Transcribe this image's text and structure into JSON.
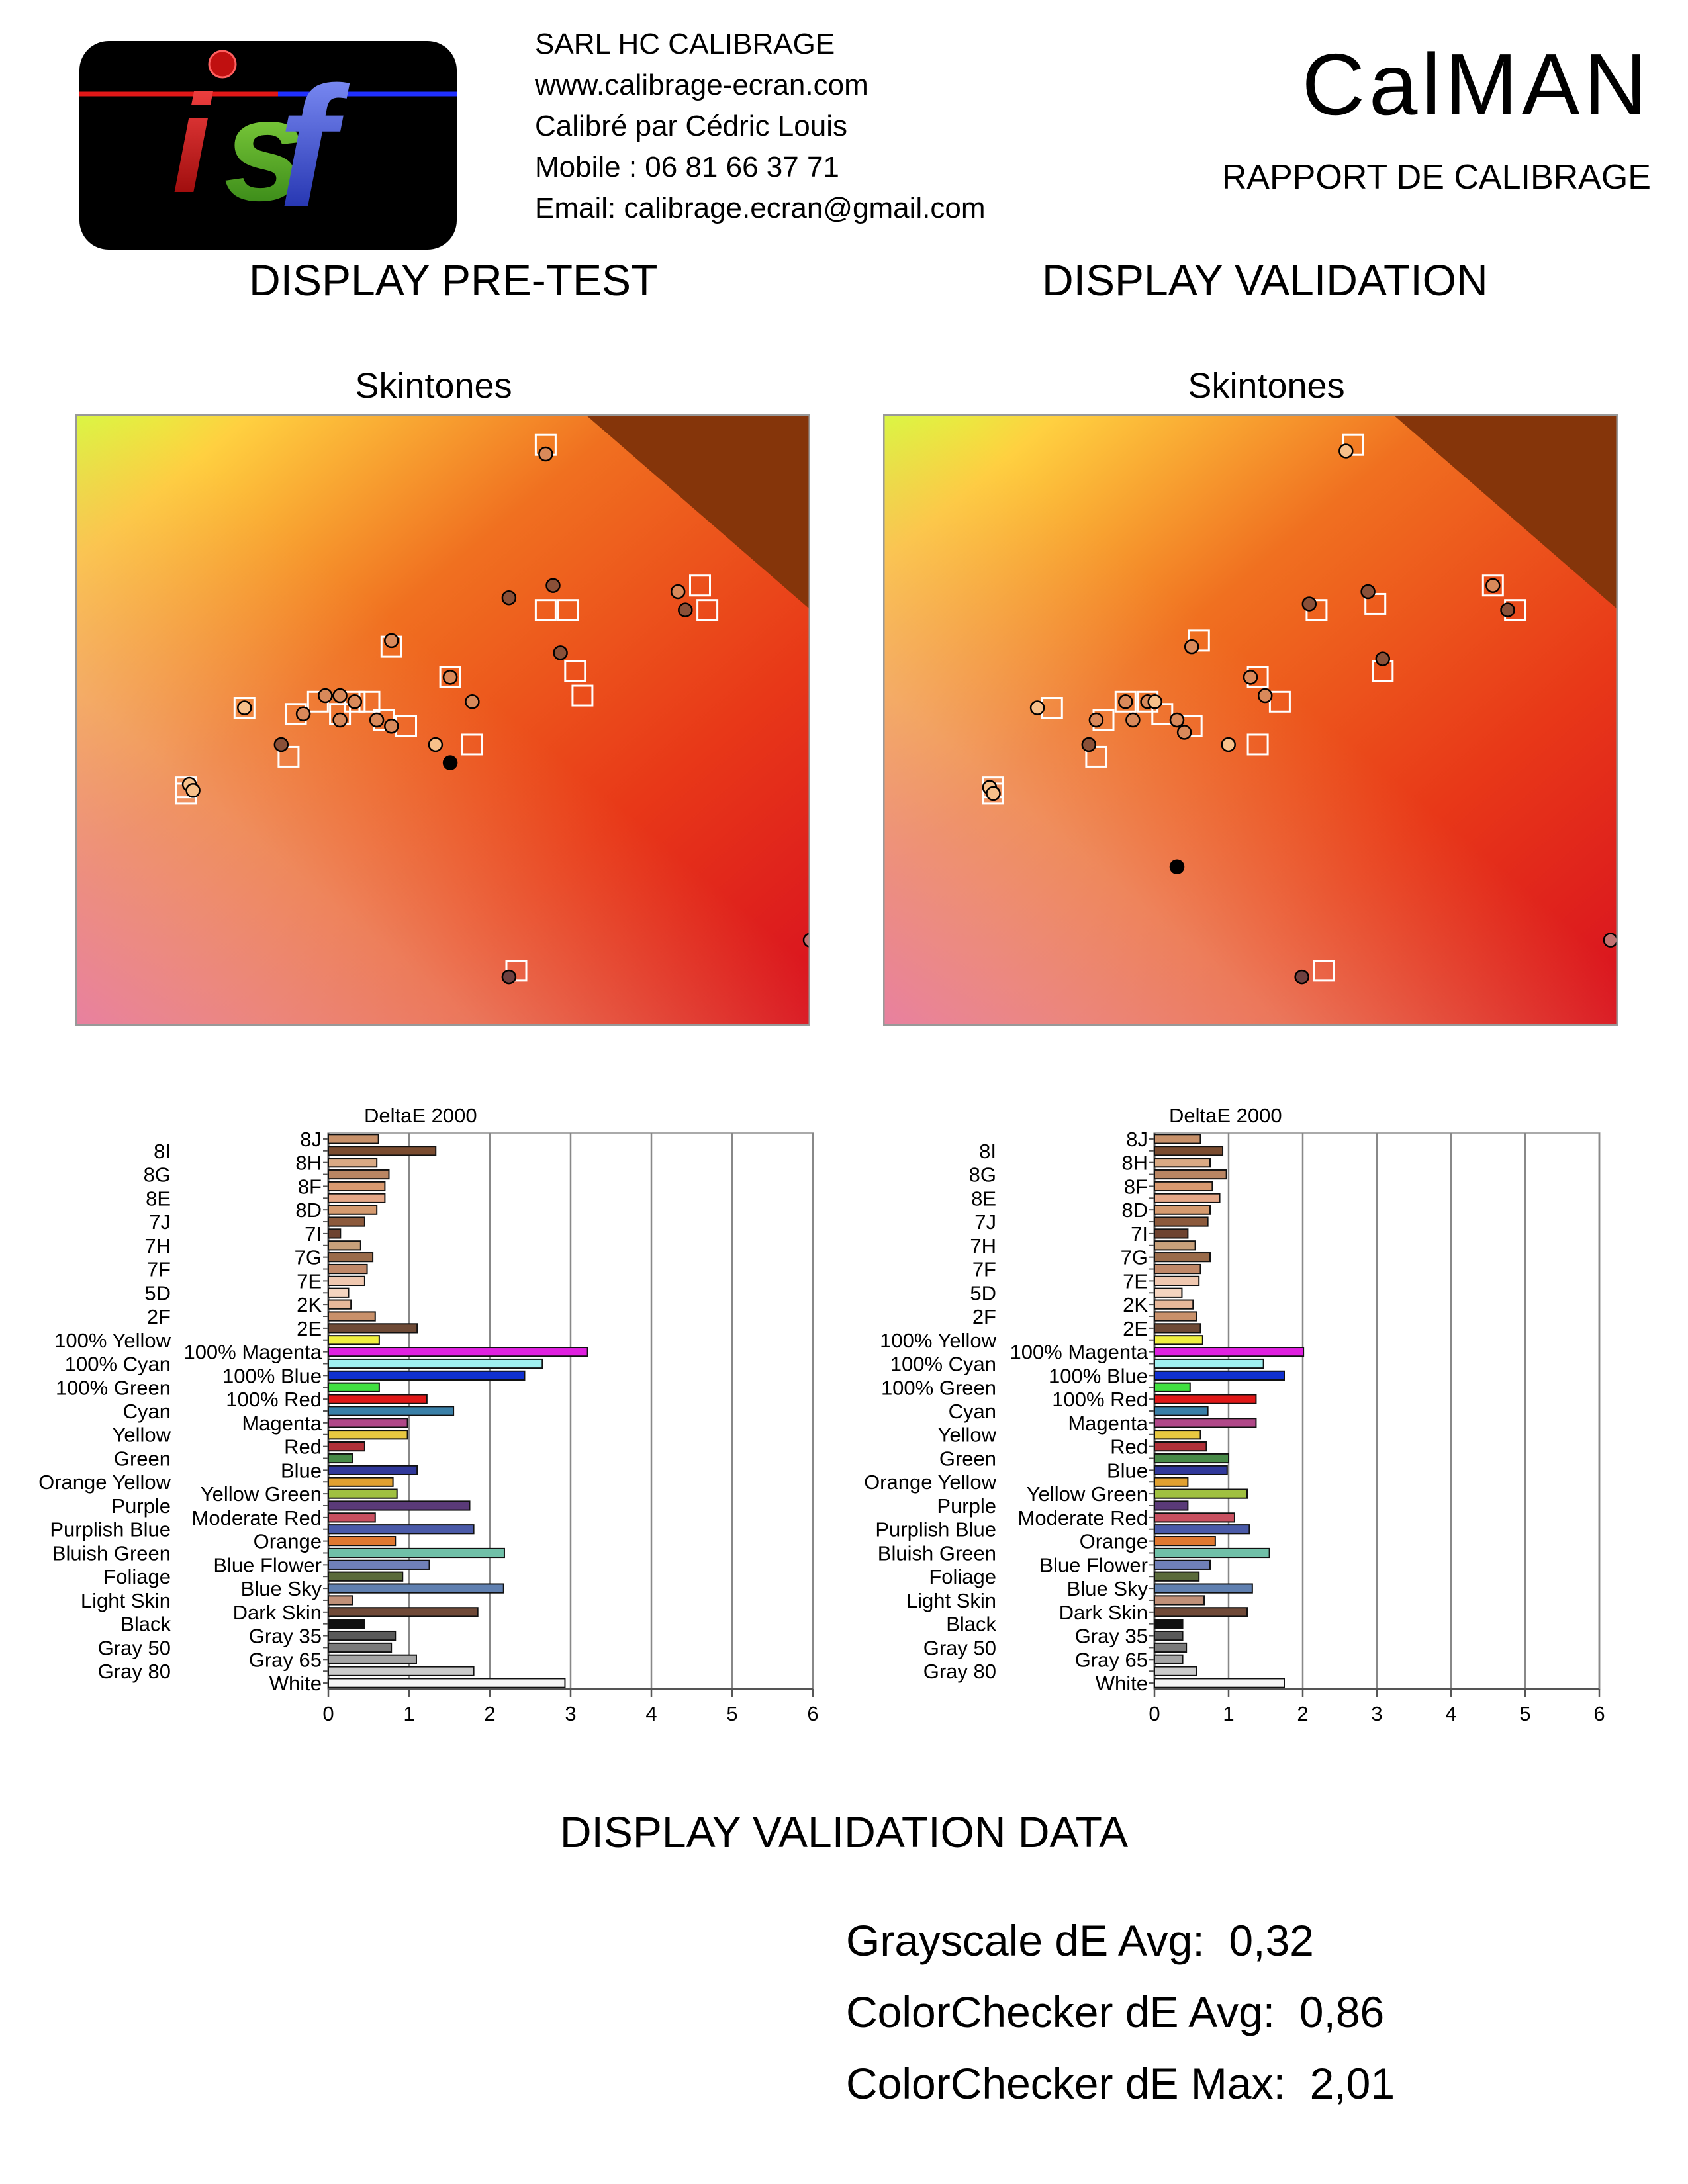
{
  "header": {
    "company": "SARL HC CALIBRAGE",
    "website": "www.calibrage-ecran.com",
    "calibrated_by": "Calibré par Cédric Louis",
    "mobile": "Mobile : 06 81 66 37 71",
    "email": "Email: calibrage.ecran@gmail.com",
    "brand": "CalMAN",
    "report": "RAPPORT DE CALIBRAGE",
    "logo_text": "isf"
  },
  "sections": {
    "pretest": "DISPLAY PRE-TEST",
    "validation": "DISPLAY VALIDATION",
    "validation_data": "DISPLAY VALIDATION DATA"
  },
  "stats": {
    "grayscale_label": "Grayscale dE Avg:",
    "grayscale_value": "0,32",
    "cc_avg_label": "ColorChecker dE Avg:",
    "cc_avg_value": "0,86",
    "cc_max_label": "ColorChecker dE Max:",
    "cc_max_value": "2,01"
  },
  "chart_data": [
    {
      "id": "skin_pre",
      "type": "scatter",
      "title": "Skintones",
      "colors": {
        "light": "#f7c08a",
        "mid": "#d9895a",
        "dark": "#8a5038",
        "deep": "#6e4040",
        "black": "#000000",
        "pink": "#c27070"
      },
      "targets": [
        [
          0.64,
          0.05
        ],
        [
          0.85,
          0.28
        ],
        [
          0.86,
          0.32
        ],
        [
          0.64,
          0.32
        ],
        [
          0.67,
          0.32
        ],
        [
          0.43,
          0.38
        ],
        [
          0.51,
          0.43
        ],
        [
          0.68,
          0.42
        ],
        [
          0.69,
          0.46
        ],
        [
          0.23,
          0.48
        ],
        [
          0.3,
          0.49
        ],
        [
          0.33,
          0.47
        ],
        [
          0.36,
          0.49
        ],
        [
          0.38,
          0.47
        ],
        [
          0.4,
          0.47
        ],
        [
          0.42,
          0.5
        ],
        [
          0.45,
          0.51
        ],
        [
          0.54,
          0.54
        ],
        [
          0.29,
          0.56
        ],
        [
          0.15,
          0.61
        ],
        [
          0.15,
          0.62
        ],
        [
          0.6,
          0.91
        ]
      ],
      "points": [
        [
          0.64,
          0.065,
          "mid"
        ],
        [
          0.65,
          0.28,
          "dark"
        ],
        [
          0.82,
          0.29,
          "mid"
        ],
        [
          0.83,
          0.32,
          "dark"
        ],
        [
          0.59,
          0.3,
          "dark"
        ],
        [
          0.66,
          0.39,
          "dark"
        ],
        [
          0.43,
          0.37,
          "mid"
        ],
        [
          0.51,
          0.43,
          "mid"
        ],
        [
          0.54,
          0.47,
          "mid"
        ],
        [
          0.23,
          0.48,
          "light"
        ],
        [
          0.31,
          0.49,
          "mid"
        ],
        [
          0.34,
          0.46,
          "mid"
        ],
        [
          0.36,
          0.46,
          "mid"
        ],
        [
          0.38,
          0.47,
          "mid"
        ],
        [
          0.36,
          0.5,
          "mid"
        ],
        [
          0.41,
          0.5,
          "mid"
        ],
        [
          0.43,
          0.51,
          "mid"
        ],
        [
          0.28,
          0.54,
          "dark"
        ],
        [
          0.49,
          0.54,
          "light"
        ],
        [
          0.51,
          0.57,
          "black"
        ],
        [
          0.155,
          0.605,
          "light"
        ],
        [
          0.16,
          0.615,
          "light"
        ],
        [
          0.59,
          0.92,
          "deep"
        ],
        [
          1.0,
          0.86,
          "pink"
        ]
      ]
    },
    {
      "id": "skin_val",
      "type": "scatter",
      "title": "Skintones",
      "colors": {
        "light": "#f7c08a",
        "mid": "#d9895a",
        "dark": "#8a5038",
        "deep": "#6e4040",
        "black": "#000000",
        "pink": "#c27070"
      },
      "targets": [
        [
          0.64,
          0.05
        ],
        [
          0.83,
          0.28
        ],
        [
          0.86,
          0.32
        ],
        [
          0.67,
          0.31
        ],
        [
          0.59,
          0.32
        ],
        [
          0.43,
          0.37
        ],
        [
          0.51,
          0.43
        ],
        [
          0.54,
          0.47
        ],
        [
          0.68,
          0.42
        ],
        [
          0.23,
          0.48
        ],
        [
          0.3,
          0.5
        ],
        [
          0.33,
          0.47
        ],
        [
          0.36,
          0.47
        ],
        [
          0.38,
          0.49
        ],
        [
          0.42,
          0.51
        ],
        [
          0.29,
          0.56
        ],
        [
          0.51,
          0.54
        ],
        [
          0.15,
          0.61
        ],
        [
          0.15,
          0.62
        ],
        [
          0.6,
          0.91
        ]
      ],
      "points": [
        [
          0.63,
          0.06,
          "light"
        ],
        [
          0.66,
          0.29,
          "dark"
        ],
        [
          0.83,
          0.28,
          "mid"
        ],
        [
          0.85,
          0.32,
          "dark"
        ],
        [
          0.58,
          0.31,
          "dark"
        ],
        [
          0.68,
          0.4,
          "dark"
        ],
        [
          0.42,
          0.38,
          "mid"
        ],
        [
          0.5,
          0.43,
          "mid"
        ],
        [
          0.52,
          0.46,
          "mid"
        ],
        [
          0.21,
          0.48,
          "light"
        ],
        [
          0.29,
          0.5,
          "mid"
        ],
        [
          0.33,
          0.47,
          "mid"
        ],
        [
          0.36,
          0.47,
          "mid"
        ],
        [
          0.37,
          0.47,
          "light"
        ],
        [
          0.34,
          0.5,
          "mid"
        ],
        [
          0.4,
          0.5,
          "mid"
        ],
        [
          0.41,
          0.52,
          "mid"
        ],
        [
          0.28,
          0.54,
          "dark"
        ],
        [
          0.47,
          0.54,
          "light"
        ],
        [
          0.4,
          0.74,
          "black"
        ],
        [
          0.145,
          0.61,
          "light"
        ],
        [
          0.15,
          0.62,
          "light"
        ],
        [
          0.57,
          0.92,
          "deep"
        ],
        [
          0.99,
          0.86,
          "pink"
        ]
      ]
    },
    {
      "id": "de_pre",
      "type": "bar",
      "title": "DeltaE 2000",
      "xlim": [
        0,
        6
      ],
      "xticks": [
        "0",
        "1",
        "2",
        "3",
        "4",
        "5",
        "6"
      ],
      "bars": [
        {
          "label": "8J",
          "value": 0.62,
          "color": "#c7916a"
        },
        {
          "label": "8I",
          "value": 1.33,
          "color": "#7a4c30"
        },
        {
          "label": "8H",
          "value": 0.6,
          "color": "#d9aa84"
        },
        {
          "label": "8G",
          "value": 0.75,
          "color": "#b98562"
        },
        {
          "label": "8F",
          "value": 0.7,
          "color": "#d99a70"
        },
        {
          "label": "8E",
          "value": 0.7,
          "color": "#e5a888"
        },
        {
          "label": "8D",
          "value": 0.6,
          "color": "#d49a6f"
        },
        {
          "label": "7J",
          "value": 0.45,
          "color": "#8c5a3c"
        },
        {
          "label": "7I",
          "value": 0.15,
          "color": "#6e4330"
        },
        {
          "label": "7H",
          "value": 0.4,
          "color": "#c8a07a"
        },
        {
          "label": "7G",
          "value": 0.55,
          "color": "#9a6b4a"
        },
        {
          "label": "7F",
          "value": 0.48,
          "color": "#c08868"
        },
        {
          "label": "7E",
          "value": 0.45,
          "color": "#f0c8b0"
        },
        {
          "label": "5D",
          "value": 0.25,
          "color": "#f5d5c0"
        },
        {
          "label": "2K",
          "value": 0.28,
          "color": "#e8b89a"
        },
        {
          "label": "2F",
          "value": 0.58,
          "color": "#c8906a"
        },
        {
          "label": "2E",
          "value": 1.1,
          "color": "#6e4a36"
        },
        {
          "label": "100% Yellow",
          "value": 0.63,
          "color": "#f0f040"
        },
        {
          "label": "100% Magenta",
          "value": 3.21,
          "color": "#e020e0"
        },
        {
          "label": "100% Cyan",
          "value": 2.65,
          "color": "#a0f0f0"
        },
        {
          "label": "100% Blue",
          "value": 2.43,
          "color": "#1030d0"
        },
        {
          "label": "100% Green",
          "value": 0.63,
          "color": "#40e040"
        },
        {
          "label": "100% Red",
          "value": 1.22,
          "color": "#e01818"
        },
        {
          "label": "Cyan",
          "value": 1.55,
          "color": "#3a80a8"
        },
        {
          "label": "Magenta",
          "value": 0.98,
          "color": "#b04888"
        },
        {
          "label": "Yellow",
          "value": 0.98,
          "color": "#e8c840"
        },
        {
          "label": "Red",
          "value": 0.45,
          "color": "#b03038"
        },
        {
          "label": "Green",
          "value": 0.3,
          "color": "#488a48"
        },
        {
          "label": "Blue",
          "value": 1.1,
          "color": "#30389a"
        },
        {
          "label": "Orange Yellow",
          "value": 0.8,
          "color": "#e0a030"
        },
        {
          "label": "Yellow Green",
          "value": 0.85,
          "color": "#a0c040"
        },
        {
          "label": "Purple",
          "value": 1.75,
          "color": "#5a3a78"
        },
        {
          "label": "Moderate Red",
          "value": 0.58,
          "color": "#c85060"
        },
        {
          "label": "Purplish Blue",
          "value": 1.8,
          "color": "#4a5aa8"
        },
        {
          "label": "Orange",
          "value": 0.83,
          "color": "#e07830"
        },
        {
          "label": "Bluish Green",
          "value": 2.18,
          "color": "#70c0a8"
        },
        {
          "label": "Blue Flower",
          "value": 1.25,
          "color": "#7080b8"
        },
        {
          "label": "Foliage",
          "value": 0.92,
          "color": "#5a6a3a"
        },
        {
          "label": "Blue Sky",
          "value": 2.17,
          "color": "#6080b0"
        },
        {
          "label": "Light Skin",
          "value": 0.3,
          "color": "#c09078"
        },
        {
          "label": "Dark Skin",
          "value": 1.85,
          "color": "#704a38"
        },
        {
          "label": "Black",
          "value": 0.45,
          "color": "#101010"
        },
        {
          "label": "Gray 35",
          "value": 0.83,
          "color": "#5a5a5a"
        },
        {
          "label": "Gray 50",
          "value": 0.78,
          "color": "#7a7a7a"
        },
        {
          "label": "Gray 65",
          "value": 1.09,
          "color": "#a5a5a5"
        },
        {
          "label": "Gray 80",
          "value": 1.8,
          "color": "#cccccc"
        },
        {
          "label": "White",
          "value": 2.93,
          "color": "#f5f5f5"
        }
      ]
    },
    {
      "id": "de_val",
      "type": "bar",
      "title": "DeltaE 2000",
      "xlim": [
        0,
        6
      ],
      "xticks": [
        "0",
        "1",
        "2",
        "3",
        "4",
        "5",
        "6"
      ],
      "bars": [
        {
          "label": "8J",
          "value": 0.62,
          "color": "#c7916a"
        },
        {
          "label": "8I",
          "value": 0.92,
          "color": "#7a4c30"
        },
        {
          "label": "8H",
          "value": 0.75,
          "color": "#d9aa84"
        },
        {
          "label": "8G",
          "value": 0.97,
          "color": "#b98562"
        },
        {
          "label": "8F",
          "value": 0.78,
          "color": "#d99a70"
        },
        {
          "label": "8E",
          "value": 0.88,
          "color": "#e5a888"
        },
        {
          "label": "8D",
          "value": 0.75,
          "color": "#d49a6f"
        },
        {
          "label": "7J",
          "value": 0.72,
          "color": "#8c5a3c"
        },
        {
          "label": "7I",
          "value": 0.45,
          "color": "#6e4330"
        },
        {
          "label": "7H",
          "value": 0.55,
          "color": "#c8a07a"
        },
        {
          "label": "7G",
          "value": 0.75,
          "color": "#9a6b4a"
        },
        {
          "label": "7F",
          "value": 0.62,
          "color": "#c08868"
        },
        {
          "label": "7E",
          "value": 0.6,
          "color": "#f0c8b0"
        },
        {
          "label": "5D",
          "value": 0.37,
          "color": "#f5d5c0"
        },
        {
          "label": "2K",
          "value": 0.52,
          "color": "#e8b89a"
        },
        {
          "label": "2F",
          "value": 0.57,
          "color": "#c8906a"
        },
        {
          "label": "2E",
          "value": 0.62,
          "color": "#6e4a36"
        },
        {
          "label": "100% Yellow",
          "value": 0.65,
          "color": "#f0f040"
        },
        {
          "label": "100% Magenta",
          "value": 2.01,
          "color": "#e020e0"
        },
        {
          "label": "100% Cyan",
          "value": 1.47,
          "color": "#a0f0f0"
        },
        {
          "label": "100% Blue",
          "value": 1.75,
          "color": "#1030d0"
        },
        {
          "label": "100% Green",
          "value": 0.48,
          "color": "#40e040"
        },
        {
          "label": "100% Red",
          "value": 1.37,
          "color": "#e01818"
        },
        {
          "label": "Cyan",
          "value": 0.72,
          "color": "#3a80a8"
        },
        {
          "label": "Magenta",
          "value": 1.37,
          "color": "#b04888"
        },
        {
          "label": "Yellow",
          "value": 0.62,
          "color": "#e8c840"
        },
        {
          "label": "Red",
          "value": 0.7,
          "color": "#b03038"
        },
        {
          "label": "Green",
          "value": 1.0,
          "color": "#488a48"
        },
        {
          "label": "Blue",
          "value": 0.98,
          "color": "#30389a"
        },
        {
          "label": "Orange Yellow",
          "value": 0.45,
          "color": "#e0a030"
        },
        {
          "label": "Yellow Green",
          "value": 1.25,
          "color": "#a0c040"
        },
        {
          "label": "Purple",
          "value": 0.45,
          "color": "#5a3a78"
        },
        {
          "label": "Moderate Red",
          "value": 1.08,
          "color": "#c85060"
        },
        {
          "label": "Purplish Blue",
          "value": 1.28,
          "color": "#4a5aa8"
        },
        {
          "label": "Orange",
          "value": 0.82,
          "color": "#e07830"
        },
        {
          "label": "Bluish Green",
          "value": 1.55,
          "color": "#70c0a8"
        },
        {
          "label": "Blue Flower",
          "value": 0.75,
          "color": "#7080b8"
        },
        {
          "label": "Foliage",
          "value": 0.6,
          "color": "#5a6a3a"
        },
        {
          "label": "Blue Sky",
          "value": 1.32,
          "color": "#6080b0"
        },
        {
          "label": "Light Skin",
          "value": 0.67,
          "color": "#c09078"
        },
        {
          "label": "Dark Skin",
          "value": 1.25,
          "color": "#704a38"
        },
        {
          "label": "Black",
          "value": 0.38,
          "color": "#101010"
        },
        {
          "label": "Gray 35",
          "value": 0.38,
          "color": "#5a5a5a"
        },
        {
          "label": "Gray 50",
          "value": 0.43,
          "color": "#7a7a7a"
        },
        {
          "label": "Gray 65",
          "value": 0.38,
          "color": "#a5a5a5"
        },
        {
          "label": "Gray 80",
          "value": 0.57,
          "color": "#cccccc"
        },
        {
          "label": "White",
          "value": 1.75,
          "color": "#f5f5f5"
        }
      ]
    }
  ]
}
